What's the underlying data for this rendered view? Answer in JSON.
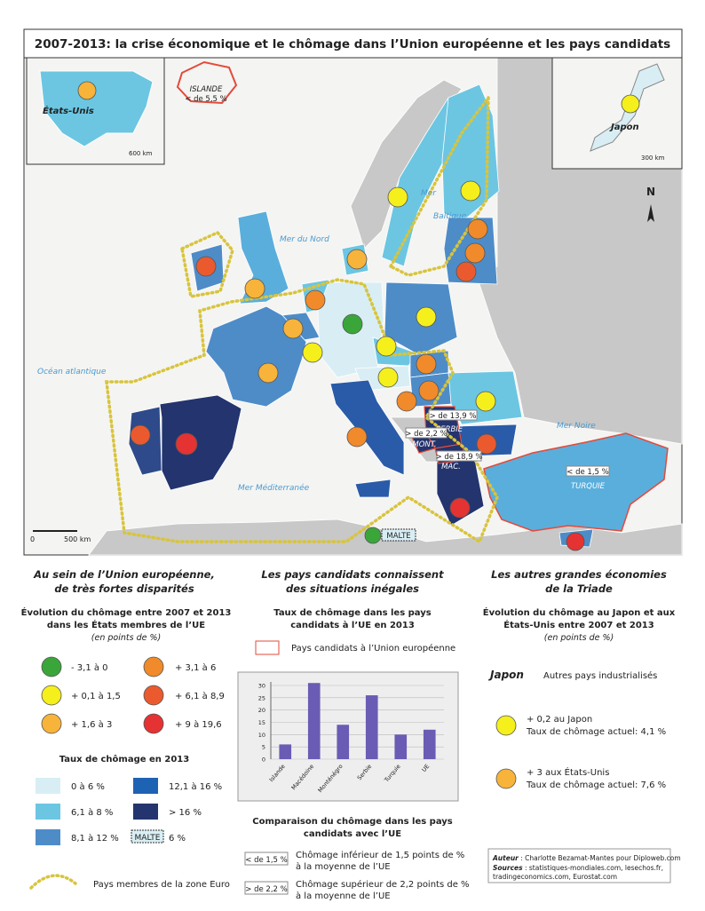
{
  "title": "2007-2013: la crise économique et le chômage dans l’Union européenne et les pays candidats",
  "map_labels": {
    "usa": "États-Unis",
    "usa_scale": "600 km",
    "iceland": "ISLANDE",
    "iceland_rate": "< de 5,5 %",
    "japan": "Japon",
    "japan_scale": "300 km",
    "north": "N",
    "north_sea": "Mer du Nord",
    "baltic": [
      "Mer",
      "Baltique"
    ],
    "atlantic": "Océan atlantique",
    "black_sea": "Mer Noire",
    "mediterranean": "Mer Méditerranée",
    "scale_zero": "0",
    "scale_end": "500 km",
    "malta": "MALTE",
    "serbia_rate": "> de 13,9 %",
    "serbia": "SERBIE",
    "montenegro_rate": "> de 2,2 %",
    "montenegro": "MONT.",
    "macedonia_rate": "> de 18,9 %",
    "macedonia": "MAC.",
    "turkey_rate": "< de 1,5 %",
    "turkey": "TURQUIE"
  },
  "eu_section": {
    "heading": [
      "Au sein de l’Union européenne,",
      "de très fortes disparités"
    ],
    "subtitle": [
      "Évolution du chômage entre 2007 et 2013",
      "dans les États membres de l’UE"
    ],
    "unit": "(en points de %)",
    "change_classes": [
      "- 3,1 à 0",
      "+ 0,1 à 1,5",
      "+ 1,6 à 3",
      "+ 3,1 à 6",
      "+ 6,1 à 8,9",
      "+ 9 à 19,6"
    ],
    "rate_title": "Taux de chômage en 2013",
    "rate_classes": [
      "0 à 6 %",
      "6,1 à 8 %",
      "8,1 à 12 %",
      "12,1 à 16 %",
      "> 16 %"
    ],
    "malta_box": "MALTE",
    "malta_rate": "6 %",
    "euro_zone": "Pays membres de la zone Euro"
  },
  "candidates_section": {
    "heading": [
      "Les pays candidats connaissent",
      "des situations inégales"
    ],
    "subtitle": [
      "Taux de chômage dans les pays",
      "candidats à l’UE en 2013"
    ],
    "candidate_legend": "Pays candidats à l’Union européenne",
    "chart": {
      "type": "bar",
      "categories": [
        "Islande",
        "Macédoine",
        "Monténégro",
        "Serbie",
        "Turquie",
        "UE"
      ],
      "values": [
        6,
        31,
        14,
        26,
        10,
        12
      ],
      "color": "#6a5cb4",
      "ylim": [
        0,
        30
      ],
      "yticks": [
        0,
        5,
        10,
        15,
        20,
        25,
        30
      ],
      "grid": true
    },
    "comparison_title": [
      "Comparaison du chômage dans les pays",
      "candidats avec l’UE"
    ],
    "below": {
      "box": "< de 1,5 %",
      "text": [
        "Chômage inférieur de 1,5 points de %",
        "à la moyenne de l’UE"
      ]
    },
    "above": {
      "box": "> de 2,2 %",
      "text": [
        "Chômage supérieur de 2,2 points de %",
        "à la moyenne de l’UE"
      ]
    }
  },
  "triad_section": {
    "heading": [
      "Les autres grandes économies",
      "de la Triade"
    ],
    "subtitle": [
      "Évolution du chômage au Japon et aux",
      "États-Unis entre 2007 et 2013"
    ],
    "unit": "(en points de %)",
    "japan": "Japon",
    "others": "Autres pays industrialisés",
    "japan_item": [
      "+ 0,2 au Japon",
      "Taux de chômage actuel: 4,1 %"
    ],
    "usa_item": [
      "+ 3 aux États-Unis",
      "Taux de chômage actuel: 7,6 %"
    ]
  },
  "credits": {
    "author_label": "Auteur",
    "author": " : Charlotte Bezamat-Mantes pour Diploweb.com",
    "sources_label": "Sources",
    "sources": [
      " : statistiques-mondiales.com, lesechos.fr,",
      "tradingeconomics.com, Eurostat.com"
    ]
  }
}
